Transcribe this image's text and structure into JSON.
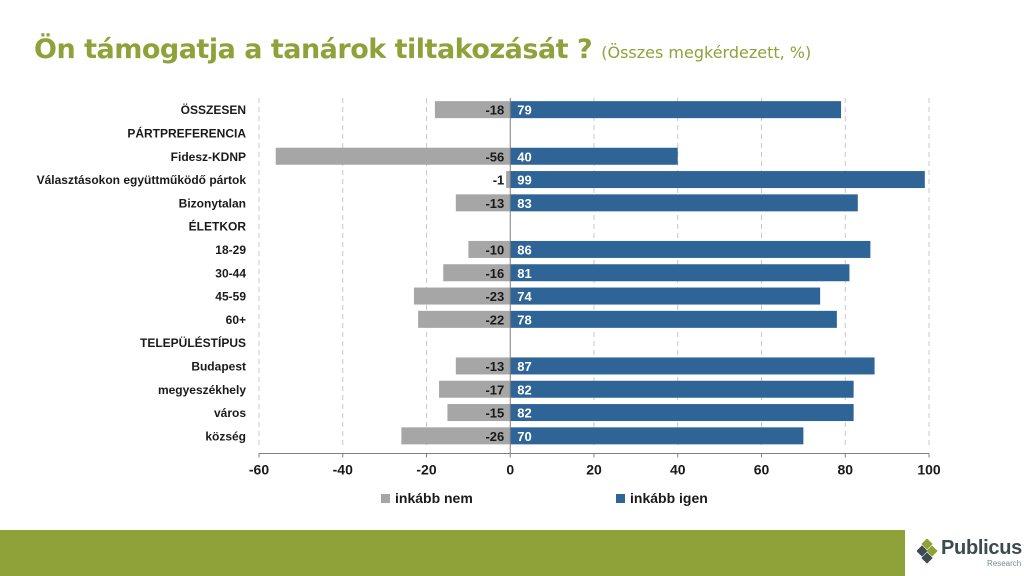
{
  "title": {
    "main": "Ön támogatja a tanárok tiltakozását ?",
    "subtitle": "(Összes megkérdezett, %)"
  },
  "colors": {
    "accent": "#8fa23a",
    "negative": "#a6a6a6",
    "positive": "#2e6496",
    "grid": "#c8c8c8"
  },
  "chart_data": {
    "type": "bar",
    "orientation": "horizontal",
    "stacked": "diverging",
    "xlim": [
      -60,
      100
    ],
    "xticks": [
      -60,
      -40,
      -20,
      0,
      20,
      40,
      60,
      80,
      100
    ],
    "categories": [
      "ÖSSZESEN",
      "PÁRTPREFERENCIA",
      "Fidesz-KDNP",
      "Választásokon együttműködő pártok",
      "Bizonytalan",
      "ÉLETKOR",
      "18-29",
      "30-44",
      "45-59",
      "60+",
      "TELEPÜLÉSTÍPUS",
      "Budapest",
      "megyeszékhely",
      "város",
      "község"
    ],
    "series": [
      {
        "name": "inkább nem",
        "color": "#a6a6a6",
        "values": [
          -18,
          null,
          -56,
          -1,
          -13,
          null,
          -10,
          -16,
          -23,
          -22,
          null,
          -13,
          -17,
          -15,
          -26
        ]
      },
      {
        "name": "inkább igen",
        "color": "#2e6496",
        "values": [
          79,
          null,
          40,
          99,
          83,
          null,
          86,
          81,
          74,
          78,
          null,
          87,
          82,
          82,
          70
        ]
      }
    ],
    "legend_position": "bottom",
    "grid": true
  },
  "logo": {
    "name": "Publicus",
    "tagline": "Research"
  }
}
